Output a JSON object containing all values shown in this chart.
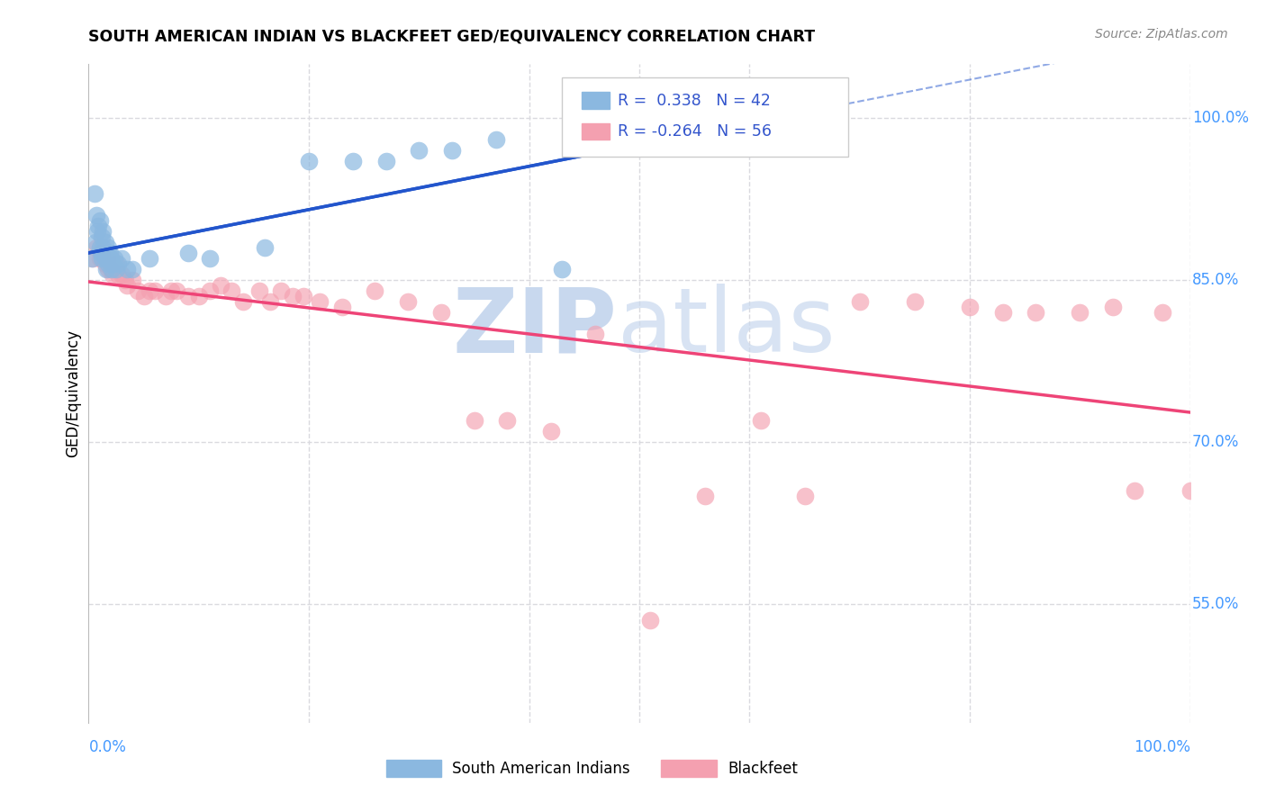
{
  "title": "SOUTH AMERICAN INDIAN VS BLACKFEET GED/EQUIVALENCY CORRELATION CHART",
  "source": "Source: ZipAtlas.com",
  "ylabel": "GED/Equivalency",
  "xmin": 0.0,
  "xmax": 1.0,
  "ymin": 0.44,
  "ymax": 1.05,
  "blue_R": 0.338,
  "blue_N": 42,
  "pink_R": -0.264,
  "pink_N": 56,
  "blue_color": "#8BB8E0",
  "pink_color": "#F4A0B0",
  "trendline_blue": "#2255CC",
  "trendline_pink": "#EE4477",
  "legend_label_blue": "South American Indians",
  "legend_label_pink": "Blackfeet",
  "background_color": "#FFFFFF",
  "grid_color": "#DADADF",
  "ytick_values": [
    1.0,
    0.85,
    0.7,
    0.55
  ],
  "ytick_labels": [
    "100.0%",
    "85.0%",
    "70.0%",
    "55.0%"
  ],
  "right_axis_color": "#4499FF",
  "blue_x": [
    0.003,
    0.005,
    0.006,
    0.007,
    0.008,
    0.009,
    0.01,
    0.01,
    0.011,
    0.012,
    0.012,
    0.013,
    0.013,
    0.014,
    0.015,
    0.015,
    0.016,
    0.016,
    0.017,
    0.018,
    0.018,
    0.019,
    0.02,
    0.021,
    0.022,
    0.023,
    0.025,
    0.027,
    0.03,
    0.035,
    0.04,
    0.055,
    0.09,
    0.11,
    0.16,
    0.2,
    0.24,
    0.27,
    0.3,
    0.33,
    0.37,
    0.43
  ],
  "blue_y": [
    0.87,
    0.93,
    0.885,
    0.91,
    0.895,
    0.9,
    0.88,
    0.905,
    0.875,
    0.89,
    0.87,
    0.88,
    0.895,
    0.875,
    0.87,
    0.885,
    0.875,
    0.86,
    0.87,
    0.865,
    0.88,
    0.875,
    0.87,
    0.86,
    0.865,
    0.87,
    0.86,
    0.865,
    0.87,
    0.86,
    0.86,
    0.87,
    0.875,
    0.87,
    0.88,
    0.96,
    0.96,
    0.96,
    0.97,
    0.97,
    0.98,
    0.86
  ],
  "pink_x": [
    0.004,
    0.007,
    0.01,
    0.012,
    0.015,
    0.017,
    0.018,
    0.02,
    0.022,
    0.025,
    0.027,
    0.03,
    0.033,
    0.035,
    0.04,
    0.045,
    0.05,
    0.055,
    0.06,
    0.07,
    0.075,
    0.08,
    0.09,
    0.1,
    0.11,
    0.12,
    0.13,
    0.14,
    0.155,
    0.165,
    0.175,
    0.185,
    0.195,
    0.21,
    0.23,
    0.26,
    0.29,
    0.32,
    0.35,
    0.38,
    0.42,
    0.46,
    0.51,
    0.56,
    0.61,
    0.65,
    0.7,
    0.75,
    0.8,
    0.83,
    0.86,
    0.9,
    0.93,
    0.95,
    0.975,
    1.0
  ],
  "pink_y": [
    0.87,
    0.88,
    0.87,
    0.875,
    0.865,
    0.87,
    0.86,
    0.86,
    0.855,
    0.865,
    0.855,
    0.855,
    0.85,
    0.845,
    0.85,
    0.84,
    0.835,
    0.84,
    0.84,
    0.835,
    0.84,
    0.84,
    0.835,
    0.835,
    0.84,
    0.845,
    0.84,
    0.83,
    0.84,
    0.83,
    0.84,
    0.835,
    0.835,
    0.83,
    0.825,
    0.84,
    0.83,
    0.82,
    0.72,
    0.72,
    0.71,
    0.8,
    0.535,
    0.65,
    0.72,
    0.65,
    0.83,
    0.83,
    0.825,
    0.82,
    0.82,
    0.82,
    0.825,
    0.655,
    0.82,
    0.655
  ]
}
